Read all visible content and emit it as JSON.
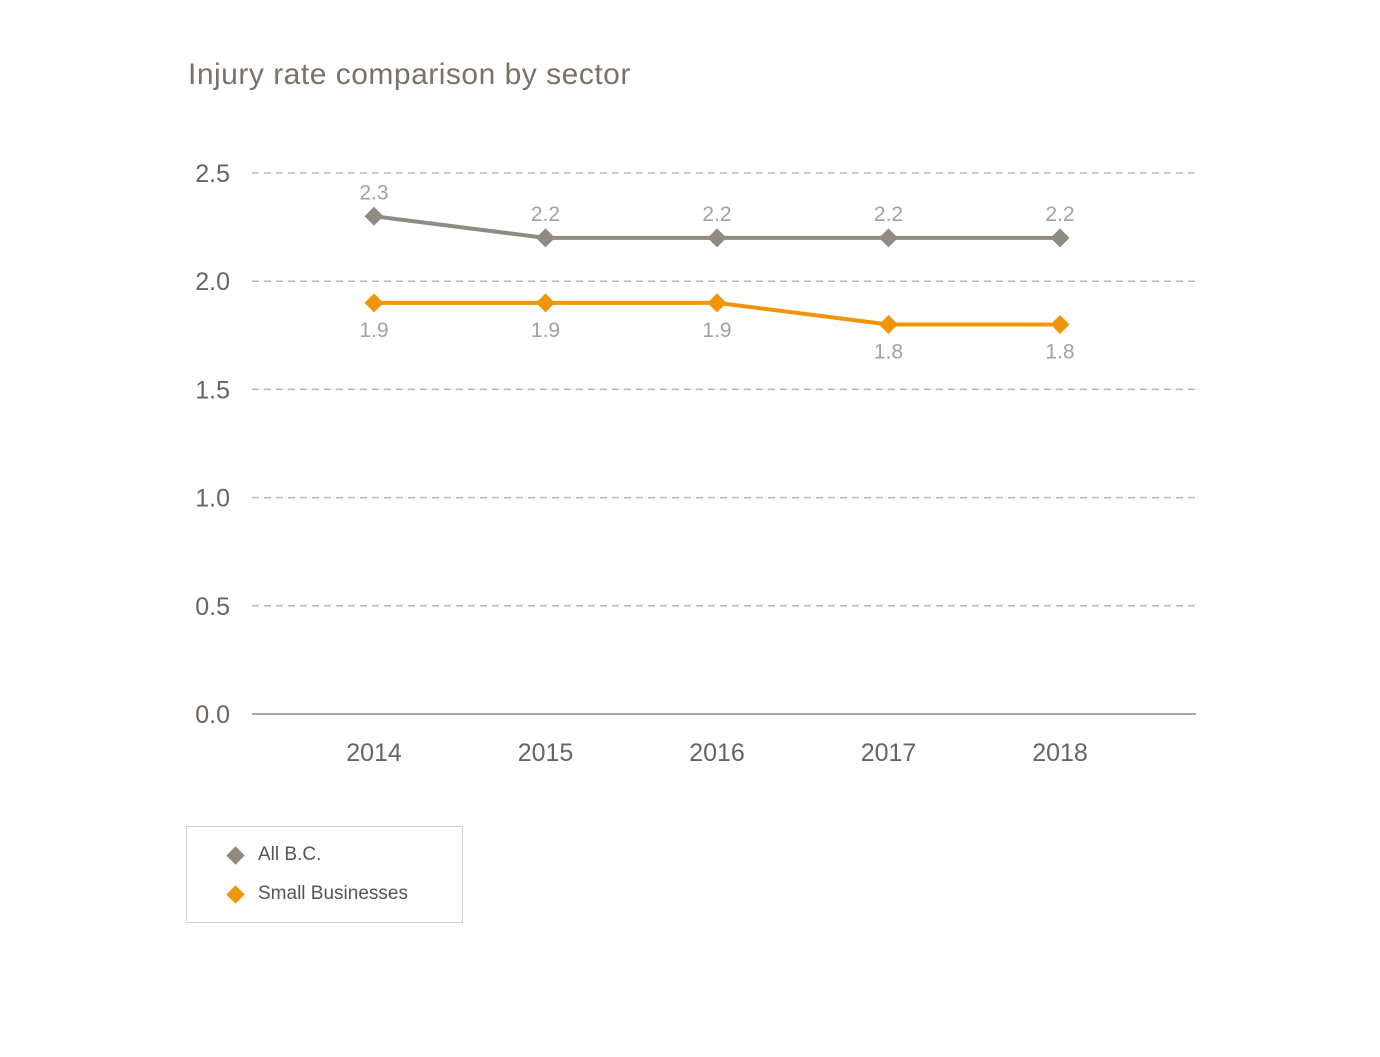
{
  "chart_data": {
    "type": "line",
    "title": "Injury rate comparison by sector",
    "categories": [
      "2014",
      "2015",
      "2016",
      "2017",
      "2018"
    ],
    "series": [
      {
        "id": "all-bc",
        "name": "All B.C.",
        "color": "#918A80",
        "values": [
          2.3,
          2.2,
          2.2,
          2.2,
          2.2
        ],
        "label_position": "above"
      },
      {
        "id": "small-businesses",
        "name": "Small Businesses",
        "color": "#F0940A",
        "values": [
          1.9,
          1.9,
          1.9,
          1.8,
          1.8
        ],
        "label_position": "below"
      }
    ],
    "yticks": [
      {
        "value": 0.0,
        "label": "0.0"
      },
      {
        "value": 0.5,
        "label": "0.5"
      },
      {
        "value": 1.0,
        "label": "1.0"
      },
      {
        "value": 1.5,
        "label": "1.5"
      },
      {
        "value": 2.0,
        "label": "2.0"
      },
      {
        "value": 2.5,
        "label": "2.5"
      }
    ],
    "ylim": [
      0,
      2.5
    ],
    "xlabel": "",
    "ylabel": "",
    "grid": "horizontal-dashed",
    "legend_position": "bottom-left",
    "marker": "diamond",
    "colors": {
      "gridline": "#BDB7AF",
      "axis_line": "#A9A39B",
      "tick_label": "#6B645C",
      "data_label": "#A6A099",
      "title": "#7A7168",
      "legend_text": "#5A544D",
      "legend_border": "#D6D3CE"
    }
  }
}
